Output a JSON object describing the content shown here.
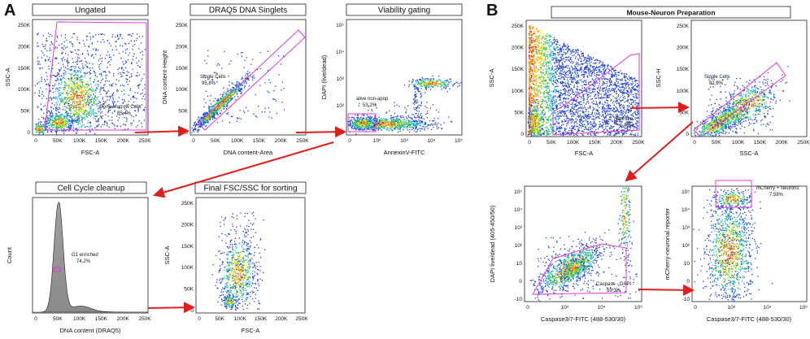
{
  "panels": {
    "A": "A",
    "B": "B"
  },
  "plots": {
    "ungated": {
      "title": "Ungated",
      "xlabel": "FSC-A",
      "ylabel": "SSC-A",
      "xticks": [
        "0",
        "50K",
        "100K",
        "150K",
        "200K",
        "250K"
      ],
      "yticks": [
        "0",
        "50K",
        "100K",
        "150K",
        "200K",
        "250K"
      ],
      "gate_label": "Bone Marrow Cells",
      "gate_value": "85,4%"
    },
    "singlets": {
      "title": "DRAQ5 DNA Singlets",
      "xlabel": "DNA content-Area",
      "ylabel": "DNA content-Height",
      "xticks": [
        "0",
        "50K",
        "100K",
        "150K",
        "200K",
        "250K"
      ],
      "yticks": [
        "0",
        "50K",
        "100K",
        "150K",
        "200K",
        "250K"
      ],
      "gate_label": "Single Cells",
      "gate_value": "95,8%"
    },
    "viability": {
      "title": "Viability gating",
      "xlabel": "AnnexinV-FITC",
      "ylabel": "DAPI (live/dead)",
      "xticks": [
        "0",
        "10²",
        "10³",
        "10⁴",
        "10⁵"
      ],
      "yticks": [
        "0",
        "10²",
        "10³",
        "10⁴",
        "10⁵"
      ],
      "gate_label": "alive non-apop",
      "gate_value": "53,2%"
    },
    "cellcycle": {
      "title": "Cell Cycle cleanup",
      "xlabel": "DNA content (DRAQ5)",
      "ylabel": "Count",
      "xticks": [
        "0",
        "50K",
        "100K",
        "150K",
        "200K",
        "250K"
      ],
      "gate_label": "G1 enriched",
      "gate_value": "74,2%"
    },
    "final": {
      "title": "Final FSC/SSC for sorting",
      "xlabel": "FSC-A",
      "ylabel": "SSC-A",
      "xticks": [
        "0",
        "50K",
        "100K",
        "150K",
        "200K",
        "250K"
      ],
      "yticks": [
        "0",
        "50K",
        "100K",
        "150K",
        "200K",
        "250K"
      ]
    },
    "neuron_title": "Mouse-Neuron Preparation",
    "b_fsc": {
      "xlabel": "FSC-A",
      "ylabel": "SSC-A",
      "xticks": [
        "0",
        "50K",
        "100K",
        "150K",
        "200K",
        "250K"
      ],
      "yticks": [
        "0",
        "50K",
        "100K",
        "150K",
        "200K",
        "250K"
      ],
      "gate_label": "Neurons",
      "gate_value": "1,46%"
    },
    "b_singlets": {
      "xlabel": "SSC-A",
      "ylabel": "SSC-H",
      "xticks": [
        "0",
        "50K",
        "100K",
        "150K",
        "200K",
        "250K"
      ],
      "yticks": [
        "0",
        "50K",
        "100K",
        "150K",
        "200K",
        "250K"
      ],
      "gate_label": "Single Cells",
      "gate_value": "81,9%"
    },
    "b_caspase": {
      "xlabel": "Caspase3/7-FITC (488-530/30)",
      "ylabel": "DAPI live/dead (405-450/50)",
      "xticks": [
        "0",
        "10³",
        "10⁴",
        "10⁵"
      ],
      "yticks": [
        "-10",
        "0",
        "10",
        "10²",
        "10³",
        "10⁴",
        "10⁵"
      ],
      "gate_label": "Caspase - DAPI -",
      "gate_value": "59,3%"
    },
    "b_mcherry": {
      "xlabel": "Caspase3/7-FITC (488-530/30)",
      "ylabel": "mCherry-neuronal reporter",
      "xticks": [
        "0",
        "10³",
        "10⁴",
        "10⁵"
      ],
      "yticks": [
        "-10",
        "0",
        "10",
        "10²",
        "10³",
        "10⁴",
        "10⁵"
      ],
      "gate_label": "mCherry + Neurons",
      "gate_value": "7,58%"
    }
  }
}
